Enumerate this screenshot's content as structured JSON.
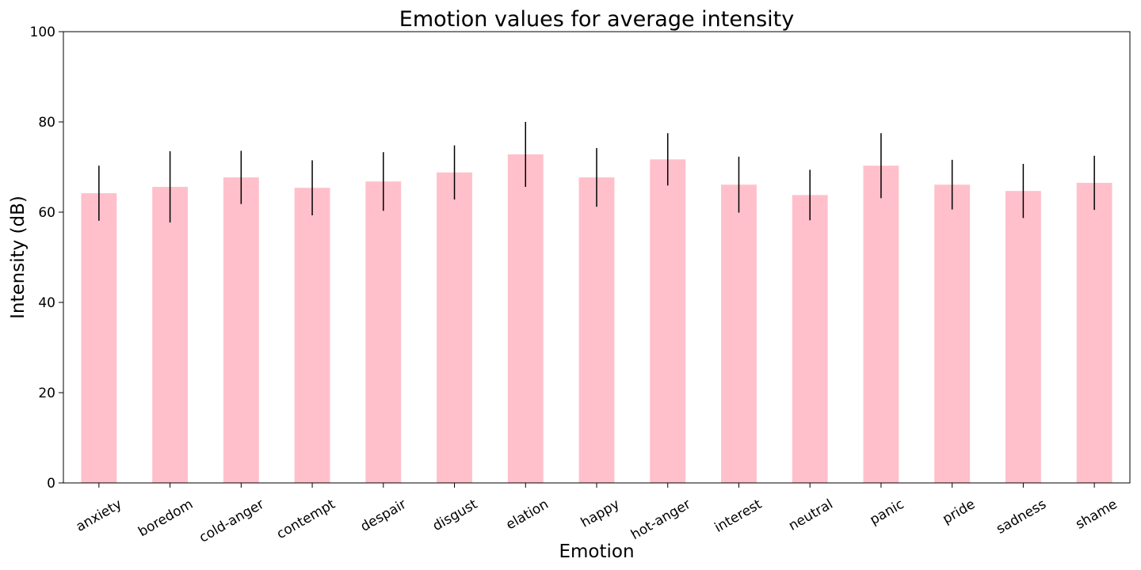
{
  "chart_data": {
    "type": "bar",
    "title": "Emotion values for average intensity",
    "xlabel": "Emotion",
    "ylabel": "Intensity (dB)",
    "ylim": [
      0,
      100
    ],
    "yticks": [
      0,
      20,
      40,
      60,
      80,
      100
    ],
    "categories": [
      "anxiety",
      "boredom",
      "cold-anger",
      "contempt",
      "despair",
      "disgust",
      "elation",
      "happy",
      "hot-anger",
      "interest",
      "neutral",
      "panic",
      "pride",
      "sadness",
      "shame"
    ],
    "values": [
      64.2,
      65.6,
      67.7,
      65.4,
      66.8,
      68.8,
      72.8,
      67.7,
      71.7,
      66.1,
      63.8,
      70.3,
      66.1,
      64.7,
      66.5
    ],
    "error": [
      6.1,
      7.9,
      5.9,
      6.1,
      6.5,
      6.0,
      7.2,
      6.5,
      5.8,
      6.2,
      5.6,
      7.2,
      5.5,
      6.0,
      6.0
    ],
    "bar_color": "#ffc0cb",
    "error_color": "#000000",
    "grid": false,
    "legend": "none"
  }
}
